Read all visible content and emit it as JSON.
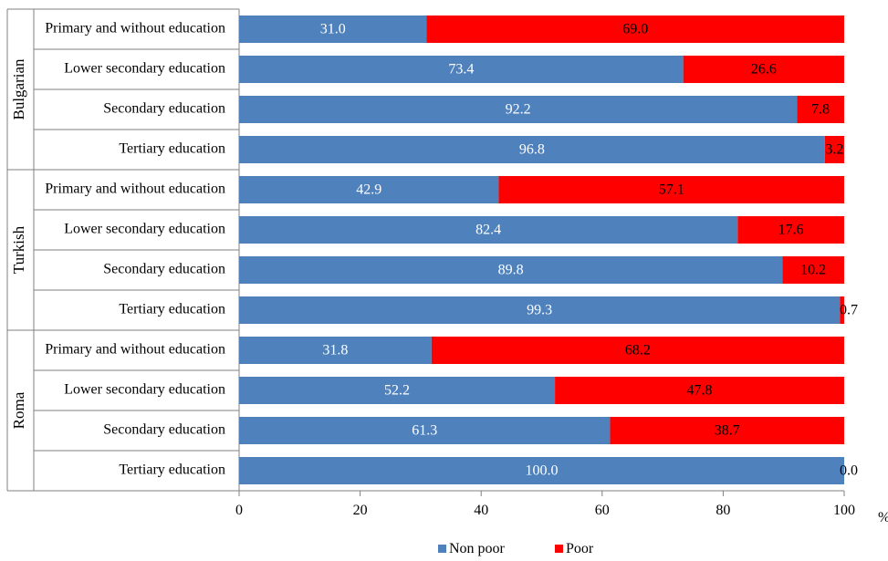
{
  "chart_data": {
    "type": "bar",
    "stacked": true,
    "orientation": "horizontal",
    "groups": [
      {
        "name": "Bulgarian",
        "categories": [
          "Primary and without education",
          "Lower secondary education",
          "Secondary education",
          "Tertiary education"
        ]
      },
      {
        "name": "Turkish",
        "categories": [
          "Primary and without education",
          "Lower secondary education",
          "Secondary education",
          "Tertiary education"
        ]
      },
      {
        "name": "Roma",
        "categories": [
          "Primary and without education",
          "Lower secondary education",
          "Secondary education",
          "Tertiary education"
        ]
      }
    ],
    "series": [
      {
        "name": "Non poor",
        "color": "#4f81bd",
        "values": [
          31.0,
          73.4,
          92.2,
          96.8,
          42.9,
          82.4,
          89.8,
          99.3,
          31.8,
          52.2,
          61.3,
          100.0
        ]
      },
      {
        "name": "Poor",
        "color": "#ff0000",
        "values": [
          69.0,
          26.6,
          7.8,
          3.2,
          57.1,
          17.6,
          10.2,
          0.7,
          68.2,
          47.8,
          38.7,
          0.0
        ]
      }
    ],
    "xlim": [
      0,
      100
    ],
    "xticks": [
      0,
      20,
      40,
      60,
      80,
      100
    ],
    "xunit": "%",
    "legend_position": "bottom",
    "grid": false
  }
}
